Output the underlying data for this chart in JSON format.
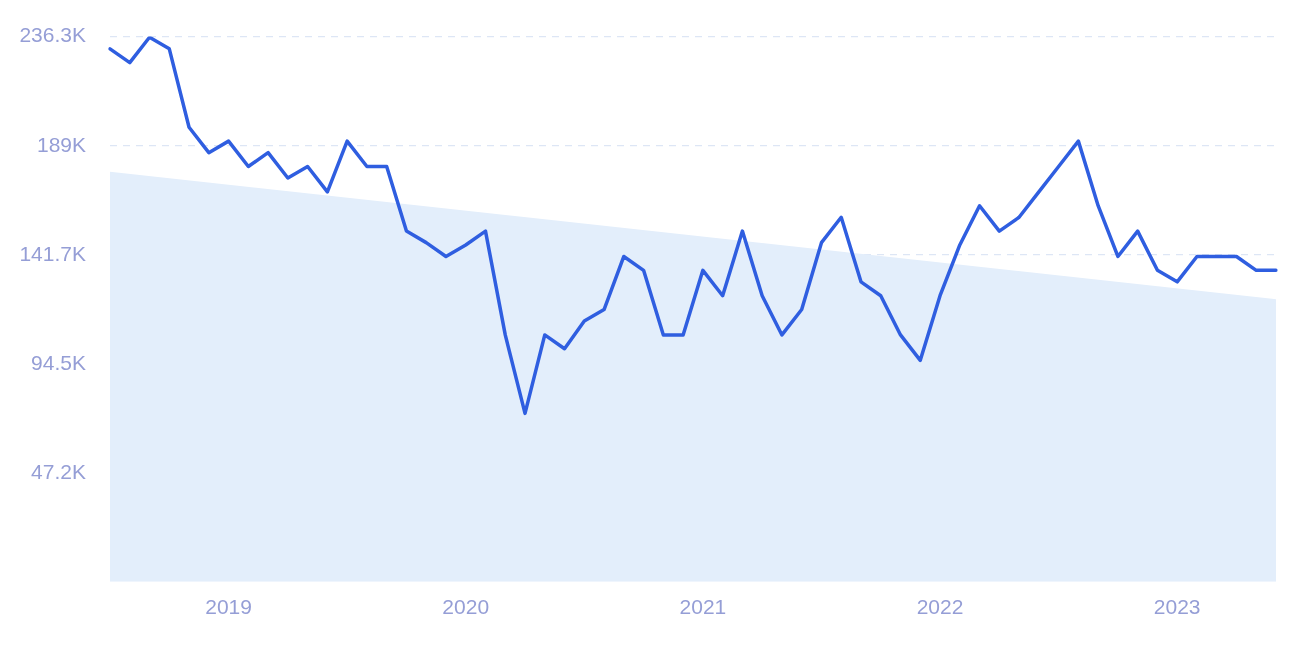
{
  "chart_data": {
    "type": "line",
    "categories": [
      null,
      null,
      null,
      null,
      null,
      null,
      "2019",
      null,
      null,
      null,
      null,
      null,
      null,
      null,
      null,
      null,
      null,
      null,
      "2020",
      null,
      null,
      null,
      null,
      null,
      null,
      null,
      null,
      null,
      null,
      null,
      "2021",
      null,
      null,
      null,
      null,
      null,
      null,
      null,
      null,
      null,
      null,
      null,
      "2022",
      null,
      null,
      null,
      null,
      null,
      null,
      null,
      null,
      null,
      null,
      null,
      "2023",
      null,
      null,
      null,
      null,
      null
    ],
    "series": [
      {
        "type": "area",
        "color": "#e3eefb",
        "values": [
          177700,
          null,
          null,
          null,
          null,
          null,
          null,
          null,
          null,
          null,
          null,
          null,
          null,
          null,
          null,
          null,
          null,
          null,
          null,
          null,
          null,
          null,
          null,
          null,
          null,
          null,
          null,
          null,
          null,
          null,
          null,
          null,
          null,
          null,
          null,
          null,
          null,
          null,
          null,
          null,
          null,
          null,
          null,
          null,
          null,
          null,
          null,
          null,
          null,
          null,
          null,
          null,
          null,
          null,
          null,
          null,
          null,
          null,
          null,
          122500
        ]
      },
      {
        "color": "#2f5ee0",
        "values": [
          231000,
          225000,
          236000,
          231000,
          197000,
          186000,
          191000,
          180000,
          186000,
          175000,
          180000,
          169000,
          191000,
          180000,
          180000,
          152000,
          147000,
          141000,
          146000,
          152000,
          107000,
          73000,
          107000,
          101000,
          113000,
          118000,
          141000,
          135000,
          107000,
          107000,
          135000,
          124000,
          152000,
          124000,
          107000,
          118000,
          147000,
          158000,
          130000,
          124000,
          107000,
          96000,
          124000,
          146000,
          163000,
          152000,
          158000,
          169000,
          180000,
          191000,
          163000,
          141000,
          152000,
          135000,
          130000,
          141000,
          141000,
          141000,
          135000,
          135000
        ]
      }
    ],
    "ylim": [
      0,
      236300
    ],
    "yticks": [
      {
        "value": 47200,
        "label": "47.2K"
      },
      {
        "value": 94500,
        "label": "94.5K"
      },
      {
        "value": 141700,
        "label": "141.7K"
      },
      {
        "value": 189000,
        "label": "189K"
      },
      {
        "value": 236300,
        "label": "236.3K"
      }
    ],
    "grid": "y",
    "marker": "none",
    "line_style": "solid"
  }
}
